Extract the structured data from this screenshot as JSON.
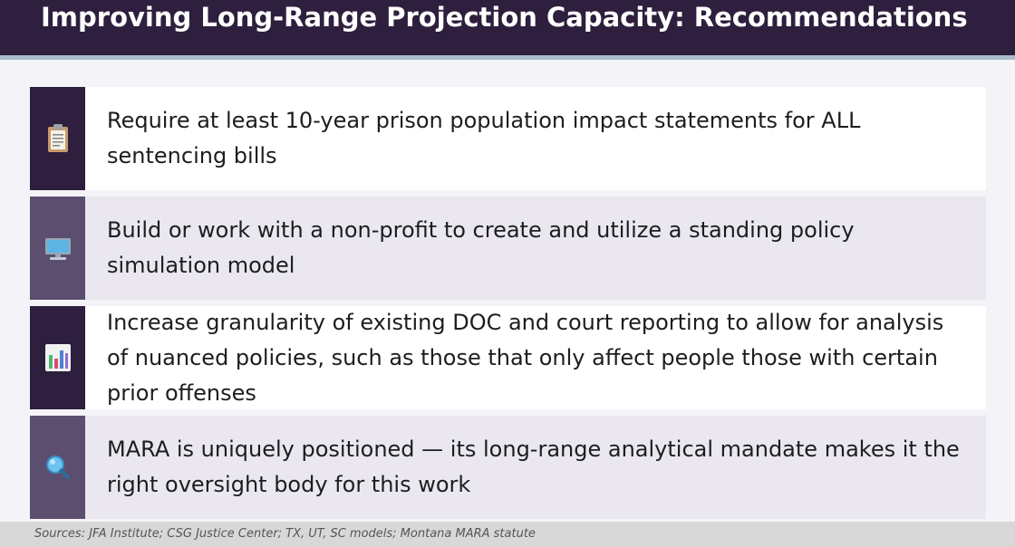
{
  "title": "Improving Long-Range Projection Capacity: Recommendations",
  "recommendations": [
    {
      "icon": "clipboard-icon",
      "text": "Require at least 10-year prison population impact statements for ALL sentencing bills"
    },
    {
      "icon": "computer-monitor-icon",
      "text": "Build or work with a non-profit to create and utilize a standing policy simulation model"
    },
    {
      "icon": "bar-chart-icon",
      "text": "Increase granularity of existing DOC and court reporting to allow for analysis of nuanced policies, such as those that only affect people those with certain prior offenses"
    },
    {
      "icon": "magnifying-glass-icon",
      "text": "MARA is uniquely positioned — its long-range analytical mandate makes it the right oversight body for this work"
    }
  ],
  "footer": {
    "sources": "Sources: JFA Institute; CSG Justice Center; TX, UT, SC models; Montana MARA statute"
  },
  "colors": {
    "header_bg": "#2d1f3d",
    "accent_rule": "#a9bccb",
    "icon_col_dark": "#2d1f3d",
    "icon_col_light": "#5b4e6f",
    "card_alt_bg": "#ebe7f1"
  }
}
